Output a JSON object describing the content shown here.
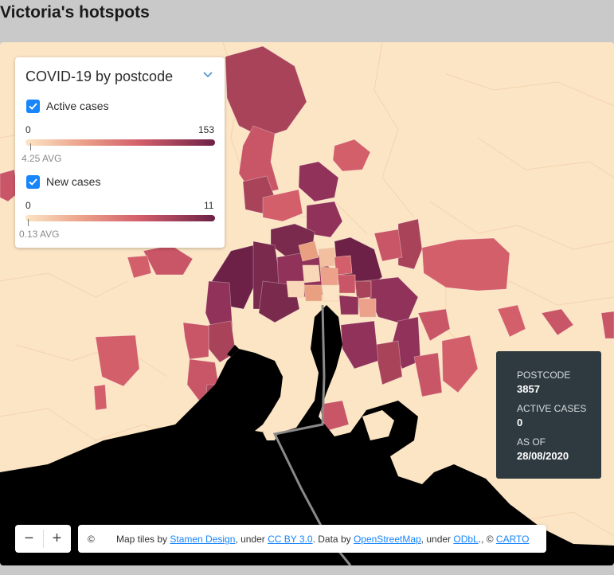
{
  "page": {
    "title": "Victoria's hotspots"
  },
  "legend": {
    "title": "COVID-19 by postcode",
    "colors": {
      "low": "#fce5c4",
      "mid": "#d35f6b",
      "high": "#6d2147",
      "checkbox": "#1785fb"
    },
    "layers": [
      {
        "label": "Active cases",
        "checked": true,
        "min": "0",
        "max": "153",
        "avg": "4.25 AVG"
      },
      {
        "label": "New cases",
        "checked": true,
        "min": "0",
        "max": "11",
        "avg": "0.13 AVG"
      }
    ]
  },
  "tooltip": {
    "postcode_label": "POSTCODE",
    "postcode": "3857",
    "active_label": "ACTIVE CASES",
    "active": "0",
    "asof_label": "AS OF",
    "asof": "28/08/2020"
  },
  "controls": {
    "zoom_out": "−",
    "zoom_in": "+"
  },
  "attribution": {
    "copyright": "©",
    "t1": "Map tiles by ",
    "l1": "Stamen Design",
    "t2": ", under ",
    "l2": "CC BY 3.0",
    "t3": ". Data by ",
    "l3": "OpenStreetMap",
    "t4": ", under ",
    "l4": "ODbL",
    "t5": "., © ",
    "l5": "CARTO"
  }
}
